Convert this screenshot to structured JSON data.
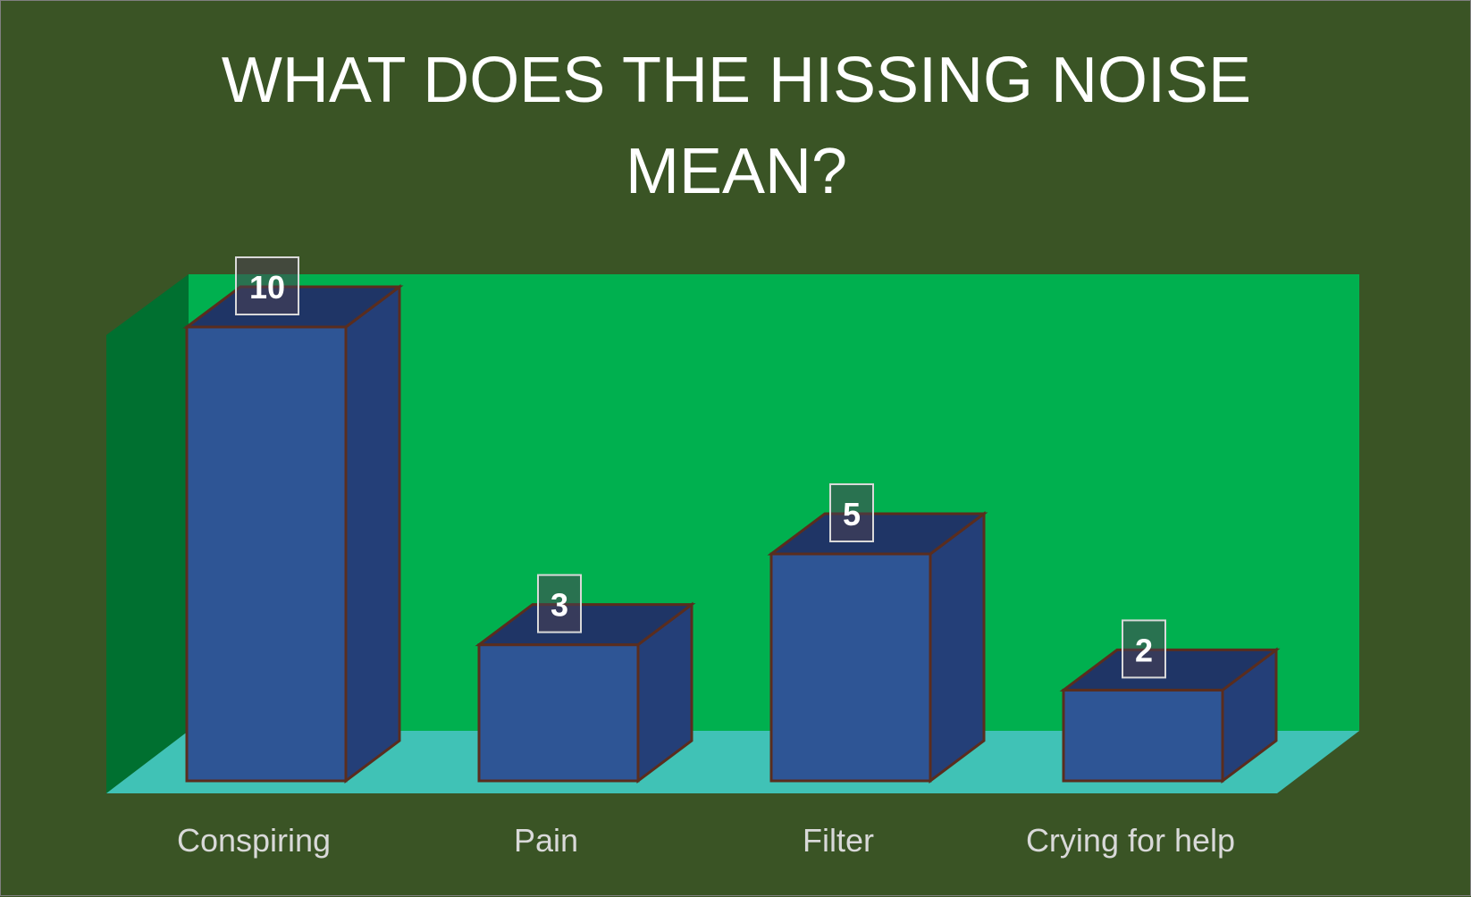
{
  "chart_data": {
    "type": "bar",
    "title": [
      "WHAT DOES THE HISSING NOISE",
      "MEAN?"
    ],
    "categories": [
      "Conspiring",
      "Pain",
      "Filter",
      "Crying for help"
    ],
    "values": [
      10,
      3,
      5,
      2
    ],
    "ylim": [
      0,
      10
    ],
    "data_labels": [
      "10",
      "3",
      "5",
      "2"
    ],
    "style": "3d-column",
    "grid": false,
    "legend": "none"
  },
  "colors": {
    "chart_background": "#3a5425",
    "back_wall": "#00b04f",
    "side_wall": "#007030",
    "floor": "#40c2b6",
    "bar_front": "#2e5595",
    "bar_side": "#243f78",
    "bar_top": "#1f3566",
    "bar_outline": "#5a2d1e",
    "label_box": "#4a3f52",
    "title_text": "#ffffff",
    "category_text": "#d9d9d9"
  }
}
